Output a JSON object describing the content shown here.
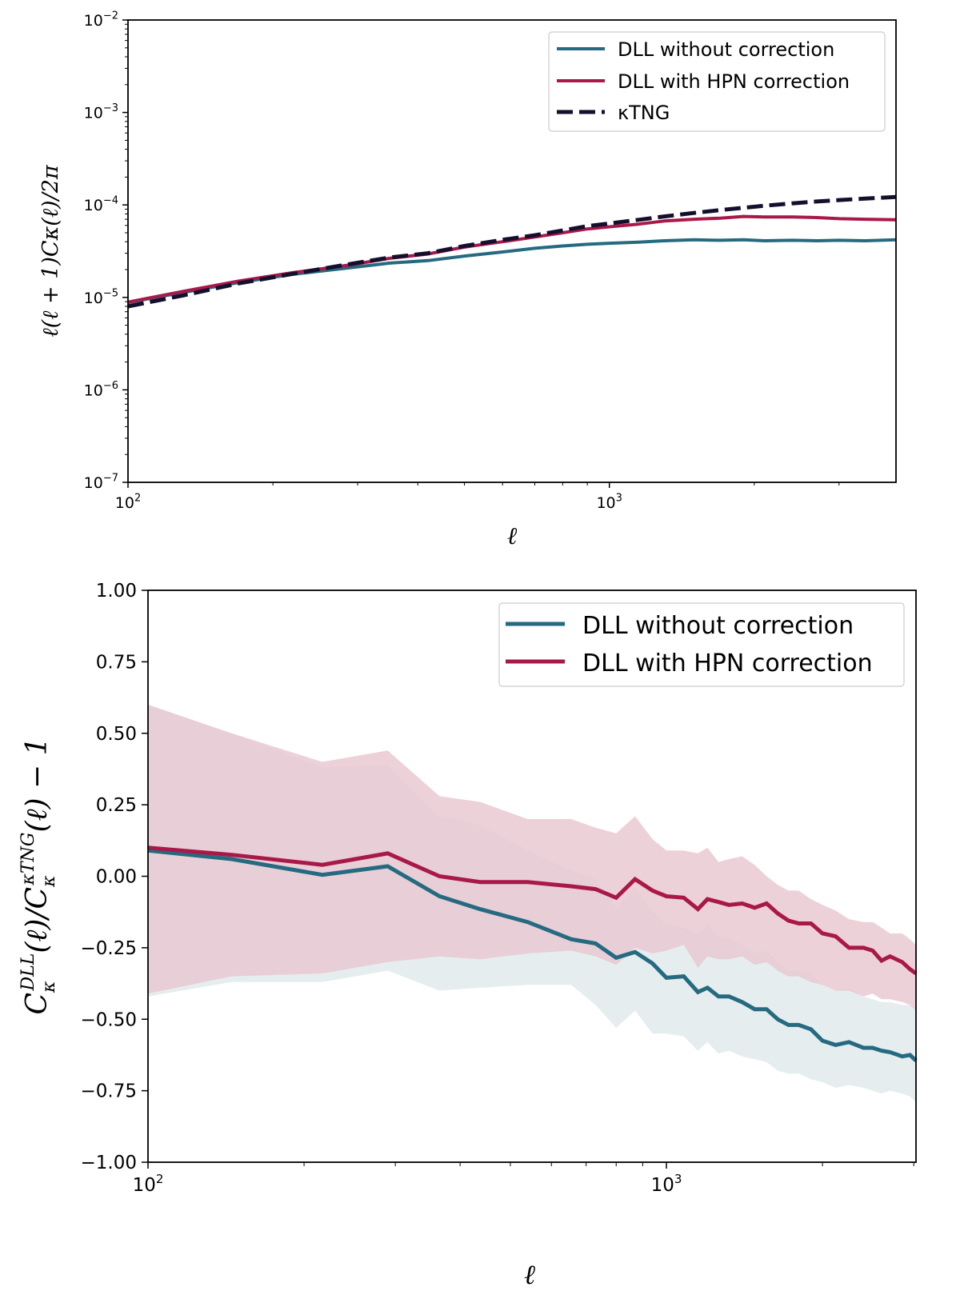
{
  "colors": {
    "without": "#256a80",
    "with": "#a8194a",
    "tng": "#150f2e",
    "band_with": "#e9c6d0",
    "band_without": "#dde7ea"
  },
  "chart_data": [
    {
      "type": "line",
      "title": "",
      "xlabel": "ℓ",
      "ylabel": "ℓ(ℓ + 1)Cκ(ℓ)/2π",
      "xscale": "log",
      "yscale": "log",
      "xlim": [
        100,
        3940
      ],
      "ylim": [
        1e-07,
        0.01
      ],
      "x_ticks": [
        {
          "value": 100,
          "base": "10",
          "exp": "2"
        },
        {
          "value": 1000,
          "base": "10",
          "exp": "3"
        }
      ],
      "y_ticks": [
        {
          "value": 0.01,
          "base": "10",
          "exp": "−2"
        },
        {
          "value": 0.001,
          "base": "10",
          "exp": "−3"
        },
        {
          "value": 0.0001,
          "base": "10",
          "exp": "−4"
        },
        {
          "value": 1e-05,
          "base": "10",
          "exp": "−5"
        },
        {
          "value": 1e-06,
          "base": "10",
          "exp": "−6"
        },
        {
          "value": 1e-07,
          "base": "10",
          "exp": "−7"
        }
      ],
      "legend": {
        "position": "top-right",
        "entries": [
          "DLL without correction",
          "DLL with HPN correction",
          "κTNG"
        ]
      },
      "x": [
        100,
        130,
        170,
        220,
        290,
        350,
        420,
        500,
        600,
        700,
        800,
        900,
        1000,
        1150,
        1300,
        1500,
        1700,
        1900,
        2100,
        2400,
        2700,
        3000,
        3400,
        3940
      ],
      "series": [
        {
          "name": "DLL without correction",
          "style": "solid",
          "values": [
            8.8e-06,
            1.13e-05,
            1.45e-05,
            1.78e-05,
            2.1e-05,
            2.35e-05,
            2.5e-05,
            2.8e-05,
            3.1e-05,
            3.4e-05,
            3.6e-05,
            3.75e-05,
            3.85e-05,
            3.95e-05,
            4.1e-05,
            4.2e-05,
            4.15e-05,
            4.2e-05,
            4.1e-05,
            4.15e-05,
            4.1e-05,
            4.15e-05,
            4.1e-05,
            4.2e-05
          ]
        },
        {
          "name": "DLL with HPN correction",
          "style": "solid",
          "values": [
            8.9e-06,
            1.16e-05,
            1.5e-05,
            1.85e-05,
            2.25e-05,
            2.65e-05,
            2.95e-05,
            3.5e-05,
            4e-05,
            4.5e-05,
            5e-05,
            5.5e-05,
            5.8e-05,
            6.2e-05,
            6.7e-05,
            7e-05,
            7.2e-05,
            7.5e-05,
            7.4e-05,
            7.4e-05,
            7.3e-05,
            7.1e-05,
            7e-05,
            6.9e-05
          ]
        },
        {
          "name": "κTNG",
          "style": "dashed",
          "values": [
            8e-06,
            1.05e-05,
            1.42e-05,
            1.8e-05,
            2.3e-05,
            2.7e-05,
            3e-05,
            3.6e-05,
            4.2e-05,
            4.7e-05,
            5.3e-05,
            5.9e-05,
            6.3e-05,
            6.9e-05,
            7.5e-05,
            8.2e-05,
            8.8e-05,
            9.3e-05,
            9.8e-05,
            0.000104,
            0.000109,
            0.000113,
            0.000117,
            0.000122
          ]
        }
      ]
    },
    {
      "type": "line",
      "title": "",
      "xlabel": "ℓ",
      "ylabel": "C_κ^DLL(ℓ)/C_κ^κTNG(ℓ) − 1",
      "xscale": "log",
      "yscale": "linear",
      "xlim": [
        100,
        3030
      ],
      "ylim": [
        -1.0,
        1.0
      ],
      "x_ticks": [
        {
          "value": 100,
          "base": "10",
          "exp": "2"
        },
        {
          "value": 1000,
          "base": "10",
          "exp": "3"
        }
      ],
      "y_ticks": [
        "1.00",
        "0.75",
        "0.50",
        "0.25",
        "0.00",
        "−0.25",
        "−0.50",
        "−0.75",
        "−1.00"
      ],
      "y_tick_values": [
        1.0,
        0.75,
        0.5,
        0.25,
        0.0,
        -0.25,
        -0.5,
        -0.75,
        -1.0
      ],
      "legend": {
        "position": "top-right",
        "entries": [
          "DLL without correction",
          "DLL with HPN correction"
        ]
      },
      "x": [
        100,
        145,
        217,
        290,
        365,
        437,
        540,
        655,
        730,
        800,
        870,
        940,
        1000,
        1080,
        1150,
        1200,
        1260,
        1320,
        1400,
        1480,
        1560,
        1640,
        1720,
        1800,
        1900,
        2000,
        2120,
        2250,
        2400,
        2500,
        2600,
        2700,
        2850,
        2950,
        3030
      ],
      "series": [
        {
          "name": "DLL without correction",
          "values": [
            0.09,
            0.06,
            0.005,
            0.035,
            -0.07,
            -0.115,
            -0.16,
            -0.22,
            -0.235,
            -0.285,
            -0.265,
            -0.305,
            -0.355,
            -0.35,
            -0.405,
            -0.39,
            -0.42,
            -0.42,
            -0.44,
            -0.465,
            -0.465,
            -0.5,
            -0.52,
            -0.52,
            -0.535,
            -0.575,
            -0.59,
            -0.58,
            -0.6,
            -0.6,
            -0.61,
            -0.615,
            -0.63,
            -0.625,
            -0.645
          ],
          "band_upper": [
            0.6,
            0.5,
            0.38,
            0.39,
            0.21,
            0.18,
            0.09,
            0.02,
            -0.01,
            -0.11,
            -0.04,
            -0.12,
            -0.17,
            -0.18,
            -0.2,
            -0.17,
            -0.21,
            -0.22,
            -0.24,
            -0.27,
            -0.26,
            -0.3,
            -0.33,
            -0.33,
            -0.34,
            -0.38,
            -0.4,
            -0.39,
            -0.42,
            -0.43,
            -0.44,
            -0.44,
            -0.45,
            -0.45,
            -0.46
          ],
          "band_lower": [
            -0.42,
            -0.37,
            -0.37,
            -0.33,
            -0.4,
            -0.39,
            -0.38,
            -0.38,
            -0.45,
            -0.53,
            -0.47,
            -0.55,
            -0.55,
            -0.56,
            -0.61,
            -0.58,
            -0.62,
            -0.61,
            -0.63,
            -0.64,
            -0.65,
            -0.68,
            -0.69,
            -0.69,
            -0.71,
            -0.72,
            -0.74,
            -0.73,
            -0.74,
            -0.75,
            -0.76,
            -0.75,
            -0.76,
            -0.77,
            -0.79
          ]
        },
        {
          "name": "DLL with HPN correction",
          "values": [
            0.1,
            0.075,
            0.04,
            0.08,
            0.0,
            -0.02,
            -0.02,
            -0.035,
            -0.045,
            -0.075,
            -0.01,
            -0.05,
            -0.07,
            -0.075,
            -0.115,
            -0.08,
            -0.09,
            -0.1,
            -0.095,
            -0.11,
            -0.095,
            -0.13,
            -0.155,
            -0.165,
            -0.165,
            -0.2,
            -0.21,
            -0.25,
            -0.25,
            -0.26,
            -0.295,
            -0.28,
            -0.3,
            -0.325,
            -0.34
          ],
          "band_upper": [
            0.6,
            0.5,
            0.4,
            0.44,
            0.28,
            0.26,
            0.2,
            0.2,
            0.17,
            0.15,
            0.21,
            0.13,
            0.09,
            0.09,
            0.08,
            0.1,
            0.05,
            0.06,
            0.07,
            0.04,
            0.0,
            -0.03,
            -0.05,
            -0.05,
            -0.08,
            -0.1,
            -0.12,
            -0.15,
            -0.16,
            -0.16,
            -0.18,
            -0.2,
            -0.2,
            -0.22,
            -0.24
          ],
          "band_lower": [
            -0.41,
            -0.35,
            -0.34,
            -0.3,
            -0.28,
            -0.29,
            -0.27,
            -0.26,
            -0.28,
            -0.31,
            -0.25,
            -0.27,
            -0.26,
            -0.24,
            -0.32,
            -0.28,
            -0.29,
            -0.29,
            -0.28,
            -0.31,
            -0.3,
            -0.33,
            -0.35,
            -0.35,
            -0.37,
            -0.38,
            -0.4,
            -0.4,
            -0.42,
            -0.41,
            -0.43,
            -0.43,
            -0.44,
            -0.45,
            -0.47
          ]
        }
      ]
    }
  ]
}
